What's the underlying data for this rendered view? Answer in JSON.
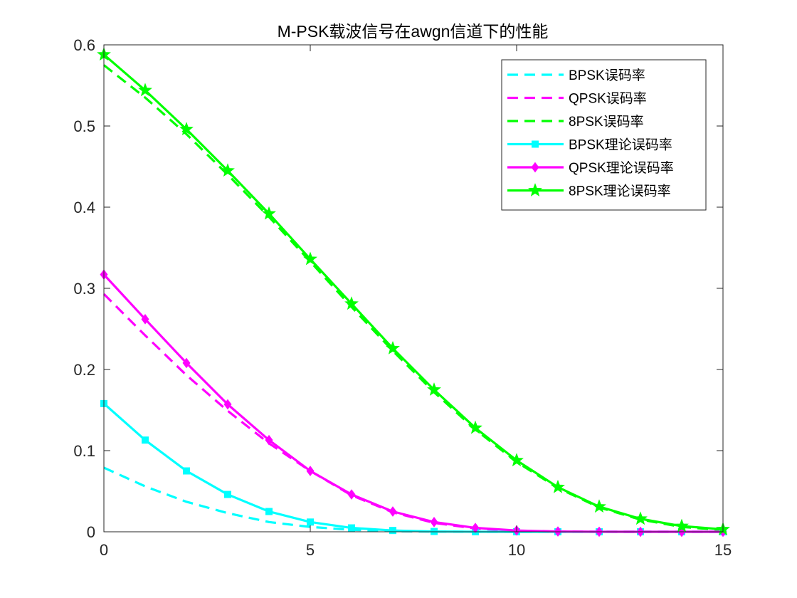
{
  "chart_data": {
    "type": "line",
    "title": "M-PSK载波信号在awgn信道下的性能",
    "xlabel": "",
    "ylabel": "",
    "xlim": [
      0,
      15
    ],
    "ylim": [
      0,
      0.6
    ],
    "xticks": [
      0,
      5,
      10,
      15
    ],
    "yticks": [
      0,
      0.1,
      0.2,
      0.3,
      0.4,
      0.5,
      0.6
    ],
    "xtick_labels": [
      "0",
      "5",
      "10",
      "15"
    ],
    "ytick_labels": [
      "0",
      "0.1",
      "0.2",
      "0.3",
      "0.4",
      "0.5",
      "0.6"
    ],
    "legend_position": "top-right",
    "x": [
      0,
      1,
      2,
      3,
      4,
      5,
      6,
      7,
      8,
      9,
      10,
      11,
      12,
      13,
      14,
      15
    ],
    "series": [
      {
        "name": "BPSK误码率",
        "style": "dashed",
        "marker": "none",
        "color": "#00FFFF",
        "values": [
          0.079,
          0.056,
          0.037,
          0.023,
          0.012,
          0.006,
          0.0024,
          0.0008,
          0.0002,
          3e-05,
          0,
          0,
          0,
          0,
          0,
          0
        ]
      },
      {
        "name": "QPSK误码率",
        "style": "dashed",
        "marker": "none",
        "color": "#FF00FF",
        "values": [
          0.293,
          0.242,
          0.193,
          0.149,
          0.109,
          0.075,
          0.045,
          0.024,
          0.011,
          0.004,
          0.0012,
          0.0003,
          5e-05,
          0,
          0,
          0
        ]
      },
      {
        "name": "8PSK误码率",
        "style": "dashed",
        "marker": "none",
        "color": "#00FF00",
        "values": [
          0.575,
          0.535,
          0.49,
          0.44,
          0.388,
          0.333,
          0.277,
          0.223,
          0.172,
          0.126,
          0.086,
          0.054,
          0.03,
          0.015,
          0.006,
          0.002
        ]
      },
      {
        "name": "BPSK理论误码率",
        "style": "solid",
        "marker": "square",
        "color": "#00FFFF",
        "values": [
          0.158,
          0.113,
          0.075,
          0.046,
          0.025,
          0.012,
          0.0048,
          0.0016,
          0.0004,
          6e-05,
          1e-05,
          0,
          0,
          0,
          0,
          0
        ]
      },
      {
        "name": "QPSK理论误码率",
        "style": "solid",
        "marker": "diamond",
        "color": "#FF00FF",
        "values": [
          0.317,
          0.262,
          0.208,
          0.157,
          0.113,
          0.075,
          0.046,
          0.025,
          0.012,
          0.0048,
          0.0016,
          0.0004,
          6e-05,
          1e-05,
          0,
          0
        ]
      },
      {
        "name": "8PSK理论误码率",
        "style": "solid",
        "marker": "star",
        "color": "#00FF00",
        "values": [
          0.588,
          0.544,
          0.496,
          0.445,
          0.392,
          0.336,
          0.281,
          0.226,
          0.175,
          0.128,
          0.088,
          0.055,
          0.031,
          0.016,
          0.007,
          0.003
        ]
      }
    ]
  }
}
